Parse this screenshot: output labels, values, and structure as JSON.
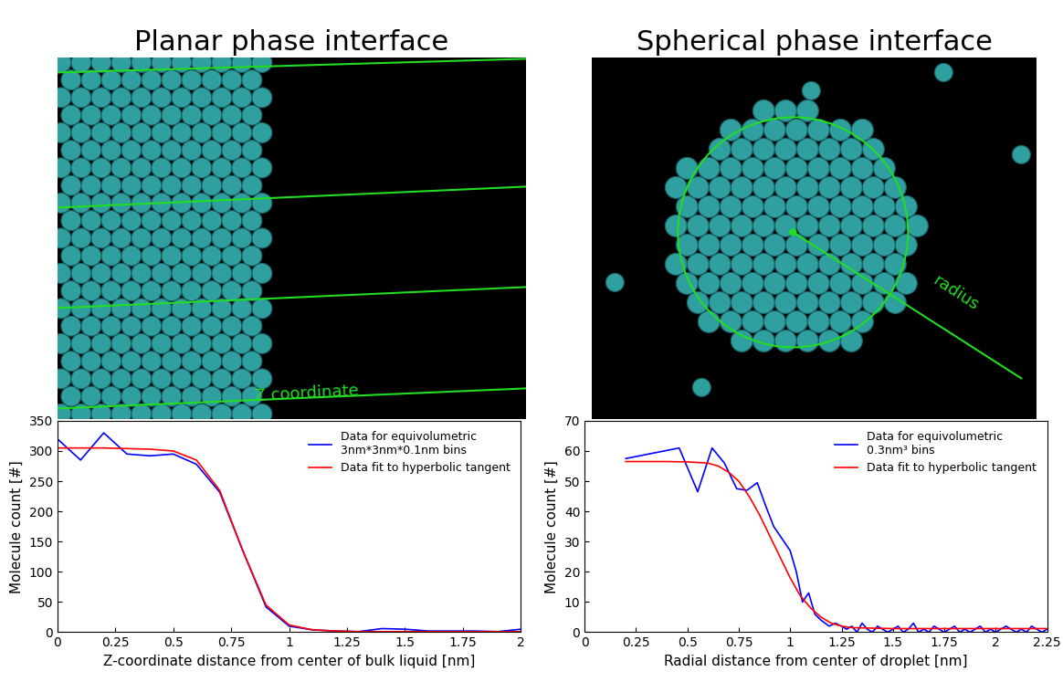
{
  "chart_data": [
    {
      "type": "line",
      "title": "Planar phase interface",
      "annotations": [
        "Z coordinate"
      ],
      "x_label": "Z-coordinate distance from center of bulk liquid [nm]",
      "y_label": "Molecule count [#]",
      "xlim": [
        0,
        2
      ],
      "xticks": [
        0,
        0.25,
        0.5,
        0.75,
        1,
        1.25,
        1.5,
        1.75,
        2
      ],
      "ylim": [
        0,
        350
      ],
      "yticks": [
        0,
        50,
        100,
        150,
        200,
        250,
        300,
        350
      ],
      "legend": "upper right",
      "series": [
        {
          "name": "Data for equivolumetric\n3nm*3nm*0.1nm bins",
          "color": "#0000ff",
          "x": [
            0,
            0.1,
            0.2,
            0.3,
            0.4,
            0.5,
            0.6,
            0.7,
            0.8,
            0.9,
            1.0,
            1.1,
            1.2,
            1.3,
            1.4,
            1.5,
            1.6,
            1.7,
            1.8,
            1.9,
            2.0
          ],
          "values": [
            320,
            285,
            330,
            295,
            292,
            295,
            278,
            232,
            135,
            42,
            10,
            4,
            2,
            1,
            6,
            5,
            2,
            2,
            2,
            1,
            5
          ]
        },
        {
          "name": "Data fit to hyperbolic tangent",
          "color": "#ff0000",
          "x": [
            0,
            0.1,
            0.2,
            0.3,
            0.4,
            0.5,
            0.6,
            0.7,
            0.8,
            0.9,
            1.0,
            1.1,
            1.2,
            1.3,
            1.4,
            1.5,
            1.6,
            1.7,
            1.8,
            1.9,
            2.0
          ],
          "values": [
            305,
            305,
            305,
            304,
            303,
            300,
            285,
            235,
            135,
            45,
            12,
            4,
            2,
            1,
            1,
            1,
            1,
            1,
            1,
            1,
            1
          ]
        }
      ]
    },
    {
      "type": "line",
      "title": "Spherical phase interface",
      "annotations": [
        "radius"
      ],
      "x_label": "Radial distance from center of droplet [nm]",
      "y_label": "Molecule count [#]",
      "xlim": [
        0,
        2.25
      ],
      "xticks": [
        0,
        0.25,
        0.5,
        0.75,
        1,
        1.25,
        1.5,
        1.75,
        2,
        2.25
      ],
      "ylim": [
        0,
        70
      ],
      "yticks": [
        0,
        10,
        20,
        30,
        40,
        50,
        60,
        70
      ],
      "legend": "upper right",
      "series": [
        {
          "name": "Data for equivolumetric\n0.3nm³ bins",
          "color": "#0000ff",
          "x": [
            0.2,
            0.46,
            0.55,
            0.62,
            0.68,
            0.74,
            0.79,
            0.84,
            0.88,
            0.92,
            0.96,
            1.0,
            1.03,
            1.06,
            1.09,
            1.12,
            1.15,
            1.19,
            1.22,
            1.25,
            1.275,
            1.3,
            1.325,
            1.35,
            1.375,
            1.4,
            1.425,
            1.45,
            1.475,
            1.5,
            1.525,
            1.55,
            1.575,
            1.6,
            1.625,
            1.65,
            1.675,
            1.7,
            1.725,
            1.75,
            1.775,
            1.8,
            1.825,
            1.85,
            1.875,
            1.9,
            1.925,
            1.95,
            1.975,
            2.0,
            2.025,
            2.05,
            2.075,
            2.1,
            2.125,
            2.15,
            2.175,
            2.2,
            2.225,
            2.25
          ],
          "values": [
            57.5,
            61,
            46.5,
            61,
            56,
            47.5,
            47,
            49.5,
            42,
            35,
            31,
            27,
            20,
            10,
            13,
            6,
            4,
            2,
            3,
            2,
            1,
            2,
            0,
            3,
            1,
            0,
            2,
            1,
            0,
            1,
            2,
            0,
            1,
            3,
            0,
            1,
            0,
            2,
            1,
            0,
            1,
            2,
            0,
            1,
            0,
            1,
            2,
            0,
            1,
            0,
            1,
            2,
            1,
            0,
            1,
            0,
            2,
            1,
            0,
            1
          ]
        },
        {
          "name": "Data fit to hyperbolic tangent",
          "color": "#ff0000",
          "x": [
            0.2,
            0.3,
            0.4,
            0.5,
            0.55,
            0.6,
            0.65,
            0.7,
            0.75,
            0.8,
            0.85,
            0.9,
            0.95,
            1.0,
            1.05,
            1.1,
            1.15,
            1.2,
            1.25,
            1.3,
            1.5,
            1.75,
            2.0,
            2.25
          ],
          "values": [
            56.5,
            56.5,
            56.5,
            56.4,
            56.2,
            56,
            55,
            53,
            50,
            45,
            39,
            32,
            25,
            18,
            12,
            8,
            5,
            3,
            2,
            1.5,
            1.2,
            1.2,
            1.2,
            1.2
          ]
        }
      ]
    }
  ]
}
